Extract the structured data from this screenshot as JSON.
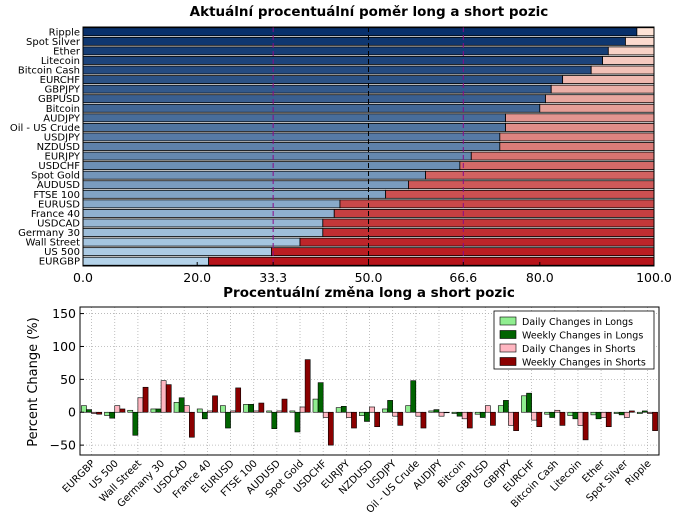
{
  "chart_data": [
    {
      "type": "bar",
      "orientation": "horizontal",
      "stacked": true,
      "title": "Aktuální procentuální poměr long a short pozic",
      "categories": [
        "EURGBP",
        "US 500",
        "Wall Street",
        "Germany 30",
        "USDCAD",
        "France 40",
        "EURUSD",
        "FTSE 100",
        "AUDUSD",
        "Spot Gold",
        "USDCHF",
        "EURJPY",
        "NZDUSD",
        "USDJPY",
        "Oil - US Crude",
        "AUDJPY",
        "Bitcoin",
        "GBPUSD",
        "GBPJPY",
        "EURCHF",
        "Bitcoin Cash",
        "Litecoin",
        "Ether",
        "Spot Silver",
        "Ripple"
      ],
      "long_percent": [
        22,
        33,
        38,
        42,
        42,
        44,
        45,
        53,
        57,
        60,
        66,
        68,
        73,
        73,
        74,
        74,
        80,
        81,
        82,
        84,
        89,
        91,
        92,
        95,
        97
      ],
      "xlim": [
        0,
        100
      ],
      "xticks": [
        "0.0",
        "20.0",
        "33.3",
        "50.0",
        "66.6",
        "80.0",
        "100.0"
      ],
      "reference_lines": [
        33.3,
        50.0,
        66.6
      ],
      "colors": {
        "long_dark": "#08306b",
        "long_light": "#b3d2e9",
        "short_light": "#fee3d6",
        "short_dark": "#b7141a",
        "ref_line": "#8b0a8b",
        "mid_line": "#000000"
      }
    },
    {
      "type": "bar",
      "title": "Procentuální změna long a short pozic",
      "ylabel": "Percent Change (%)",
      "ylim": [
        -65,
        160
      ],
      "yticks": [
        "−50",
        "0",
        "50",
        "100",
        "150"
      ],
      "categories": [
        "EURGBP",
        "US 500",
        "Wall Street",
        "Germany 30",
        "USDCAD",
        "France 40",
        "EURUSD",
        "FTSE 100",
        "AUDUSD",
        "Spot Gold",
        "USDCHF",
        "EURJPY",
        "NZDUSD",
        "USDJPY",
        "Oil - US Crude",
        "AUDJPY",
        "Bitcoin",
        "GBPUSD",
        "GBPJPY",
        "EURCHF",
        "Bitcoin Cash",
        "Litecoin",
        "Ether",
        "Spot Silver",
        "Ripple"
      ],
      "series": [
        {
          "name": "Daily Changes in Longs",
          "color": "#90ee90",
          "values": [
            10,
            -5,
            3,
            5,
            15,
            5,
            10,
            12,
            2,
            2,
            20,
            7,
            -5,
            5,
            10,
            2,
            -2,
            -3,
            10,
            25,
            -3,
            -5,
            -4,
            -2,
            -2
          ]
        },
        {
          "name": "Weekly Changes in Longs",
          "color": "#006400",
          "values": [
            4,
            -9,
            -35,
            5,
            22,
            -10,
            -24,
            12,
            -25,
            -30,
            45,
            9,
            -14,
            18,
            48,
            4,
            -6,
            -8,
            18,
            29,
            -8,
            -10,
            -10,
            -4,
            2
          ]
        },
        {
          "name": "Daily Changes in Shorts",
          "color": "#ffb6c1",
          "values": [
            -2,
            10,
            22,
            48,
            10,
            2,
            2,
            2,
            2,
            8,
            -8,
            -8,
            8,
            -6,
            -6,
            -6,
            -10,
            10,
            -20,
            -12,
            3,
            -20,
            -8,
            -8,
            -2
          ]
        },
        {
          "name": "Weekly Changes in Shorts",
          "color": "#8b0000",
          "values": [
            -3,
            5,
            38,
            42,
            -38,
            25,
            37,
            14,
            20,
            80,
            -50,
            -24,
            -22,
            -20,
            -24,
            0,
            -24,
            -20,
            -28,
            -22,
            -20,
            -42,
            -22,
            2,
            -28
          ]
        }
      ],
      "legend": "top-right",
      "grid": true
    }
  ]
}
